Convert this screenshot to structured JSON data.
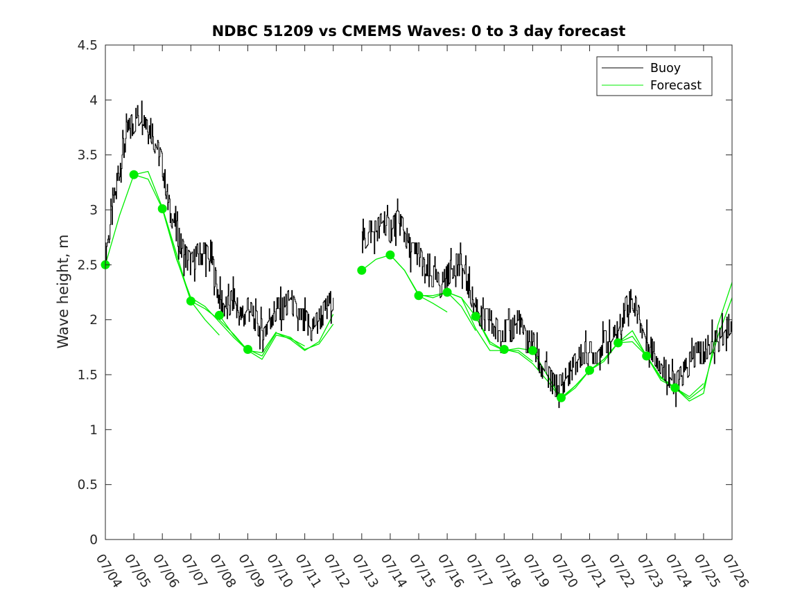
{
  "chart_data": {
    "type": "line",
    "title": "NDBC 51209 vs CMEMS Waves: 0 to 3 day forecast",
    "xlabel": "",
    "ylabel": "Wave height, m",
    "x_axis": {
      "kind": "date",
      "range": [
        "07/04",
        "07/26"
      ],
      "ticks": [
        "07/04",
        "07/05",
        "07/06",
        "07/07",
        "07/08",
        "07/09",
        "07/10",
        "07/11",
        "07/12",
        "07/13",
        "07/14",
        "07/15",
        "07/16",
        "07/17",
        "07/18",
        "07/19",
        "07/20",
        "07/21",
        "07/22",
        "07/23",
        "07/24",
        "07/25",
        "07/26"
      ]
    },
    "ylim": [
      0,
      4.5
    ],
    "yticks": [
      "0",
      "0.5",
      "1",
      "1.5",
      "2",
      "2.5",
      "3",
      "3.5",
      "4",
      "4.5"
    ],
    "grid": false,
    "legend": {
      "position": "top-right",
      "entries": [
        "Buoy",
        "Forecast"
      ]
    },
    "colors": {
      "buoy": "#000000",
      "forecast": "#00ee00"
    },
    "buoy": {
      "name": "Buoy",
      "x": [
        "07/04 00:00",
        "07/04 06:00",
        "07/04 12:00",
        "07/04 18:00",
        "07/05 00:00",
        "07/05 06:00",
        "07/05 12:00",
        "07/05 18:00",
        "07/06 00:00",
        "07/06 06:00",
        "07/06 12:00",
        "07/06 18:00",
        "07/07 00:00",
        "07/07 06:00",
        "07/07 12:00",
        "07/07 18:00",
        "07/08 00:00",
        "07/08 06:00",
        "07/08 12:00",
        "07/08 18:00",
        "07/09 00:00",
        "07/09 06:00",
        "07/09 12:00",
        "07/09 18:00",
        "07/10 00:00",
        "07/10 06:00",
        "07/10 12:00",
        "07/10 18:00",
        "07/11 00:00",
        "07/11 06:00",
        "07/11 12:00",
        "07/11 18:00",
        "07/12 00:00",
        null,
        "07/13 00:00",
        "07/13 06:00",
        "07/13 12:00",
        "07/13 18:00",
        "07/14 00:00",
        "07/14 06:00",
        "07/14 12:00",
        "07/14 18:00",
        "07/15 00:00",
        "07/15 06:00",
        "07/15 12:00",
        "07/15 18:00",
        "07/16 00:00",
        "07/16 06:00",
        "07/16 12:00",
        "07/16 18:00",
        "07/17 00:00",
        "07/17 06:00",
        "07/17 12:00",
        "07/17 18:00",
        "07/18 00:00",
        "07/18 06:00",
        "07/18 12:00",
        "07/18 18:00",
        "07/19 00:00",
        "07/19 06:00",
        "07/19 12:00",
        "07/19 18:00",
        "07/20 00:00",
        "07/20 06:00",
        "07/20 12:00",
        "07/20 18:00",
        "07/21 00:00",
        "07/21 06:00",
        "07/21 12:00",
        "07/21 18:00",
        "07/22 00:00",
        "07/22 06:00",
        "07/22 12:00",
        "07/22 18:00",
        "07/23 00:00",
        "07/23 06:00",
        "07/23 12:00",
        "07/23 18:00",
        "07/24 00:00",
        "07/24 06:00",
        "07/24 12:00",
        "07/24 18:00",
        "07/25 00:00",
        "07/25 06:00",
        "07/25 12:00",
        "07/25 18:00",
        "07/26 00:00"
      ],
      "y": [
        2.6,
        3.0,
        3.4,
        3.7,
        3.8,
        3.9,
        3.8,
        3.6,
        3.4,
        3.0,
        2.8,
        2.6,
        2.5,
        2.6,
        2.6,
        2.5,
        2.2,
        2.1,
        2.2,
        2.0,
        2.1,
        2.0,
        1.9,
        2.0,
        2.1,
        2.1,
        2.2,
        2.0,
        2.0,
        1.9,
        2.0,
        2.1,
        2.2,
        null,
        2.7,
        2.8,
        2.8,
        2.9,
        2.8,
        2.9,
        2.8,
        2.6,
        2.6,
        2.4,
        2.4,
        2.3,
        2.4,
        2.5,
        2.5,
        2.3,
        2.1,
        2.0,
        2.0,
        1.9,
        1.9,
        1.9,
        2.0,
        1.8,
        1.8,
        1.6,
        1.5,
        1.4,
        1.4,
        1.5,
        1.6,
        1.7,
        1.7,
        1.7,
        1.8,
        1.8,
        1.9,
        2.1,
        2.2,
        2.0,
        1.8,
        1.7,
        1.6,
        1.5,
        1.4,
        1.5,
        1.6,
        1.7,
        1.7,
        1.8,
        1.8,
        1.9,
        2.0
      ]
    },
    "forecast": {
      "name": "Forecast",
      "runs": [
        {
          "x": [
            "07/04 00:00",
            "07/04 12:00",
            "07/05 00:00",
            "07/05 12:00",
            "07/06 00:00",
            "07/06 12:00",
            "07/07 00:00"
          ],
          "y": [
            2.5,
            2.95,
            3.32,
            3.28,
            3.01,
            2.56,
            2.17
          ]
        },
        {
          "x": [
            "07/05 00:00",
            "07/05 12:00",
            "07/06 00:00",
            "07/06 12:00",
            "07/07 00:00",
            "07/07 12:00",
            "07/08 00:00"
          ],
          "y": [
            3.32,
            3.35,
            3.02,
            2.6,
            2.17,
            2.0,
            1.86
          ]
        },
        {
          "x": [
            "07/06 00:00",
            "07/06 12:00",
            "07/07 00:00",
            "07/07 12:00",
            "07/08 00:00",
            "07/08 12:00",
            "07/09 00:00"
          ],
          "y": [
            3.01,
            2.55,
            2.2,
            2.12,
            1.98,
            1.84,
            1.72
          ]
        },
        {
          "x": [
            "07/07 00:00",
            "07/07 12:00",
            "07/08 00:00",
            "07/08 12:00",
            "07/09 00:00",
            "07/09 12:00",
            "07/10 00:00"
          ],
          "y": [
            2.17,
            2.1,
            2.0,
            1.87,
            1.72,
            1.7,
            1.89
          ]
        },
        {
          "x": [
            "07/08 00:00",
            "07/08 12:00",
            "07/09 00:00",
            "07/09 12:00",
            "07/10 00:00",
            "07/10 12:00",
            "07/11 00:00"
          ],
          "y": [
            2.04,
            1.86,
            1.72,
            1.64,
            1.86,
            1.83,
            1.76
          ]
        },
        {
          "x": [
            "07/09 00:00",
            "07/09 12:00",
            "07/10 00:00",
            "07/10 12:00",
            "07/11 00:00",
            "07/11 12:00",
            "07/12 00:00"
          ],
          "y": [
            1.73,
            1.67,
            1.88,
            1.84,
            1.73,
            1.78,
            1.96
          ]
        },
        {
          "x": [
            "07/10 00:00",
            "07/10 12:00",
            "07/11 00:00",
            "07/11 12:00",
            "07/12 00:00"
          ],
          "y": [
            1.88,
            1.82,
            1.72,
            1.8,
            2.05
          ]
        },
        {
          "x": [
            "07/13 00:00",
            "07/13 12:00",
            "07/14 00:00",
            "07/14 12:00",
            "07/15 00:00",
            "07/15 12:00",
            "07/16 00:00"
          ],
          "y": [
            2.45,
            2.55,
            2.59,
            2.45,
            2.22,
            2.15,
            2.07
          ]
        },
        {
          "x": [
            "07/14 00:00",
            "07/14 12:00",
            "07/15 00:00",
            "07/15 12:00",
            "07/16 00:00",
            "07/16 12:00",
            "07/17 00:00"
          ],
          "y": [
            2.59,
            2.45,
            2.23,
            2.2,
            2.25,
            2.12,
            1.9
          ]
        },
        {
          "x": [
            "07/15 00:00",
            "07/15 12:00",
            "07/16 00:00",
            "07/16 12:00",
            "07/17 00:00",
            "07/17 12:00",
            "07/18 00:00"
          ],
          "y": [
            2.22,
            2.22,
            2.25,
            2.2,
            1.92,
            1.72,
            1.72
          ]
        },
        {
          "x": [
            "07/16 00:00",
            "07/16 12:00",
            "07/17 00:00",
            "07/17 12:00",
            "07/18 00:00",
            "07/18 12:00",
            "07/19 00:00"
          ],
          "y": [
            2.25,
            2.2,
            2.03,
            1.78,
            1.72,
            1.72,
            1.62
          ]
        },
        {
          "x": [
            "07/17 00:00",
            "07/17 12:00",
            "07/18 00:00",
            "07/18 12:00",
            "07/19 00:00",
            "07/19 12:00",
            "07/20 00:00"
          ],
          "y": [
            2.03,
            1.8,
            1.72,
            1.74,
            1.72,
            1.5,
            1.29
          ]
        },
        {
          "x": [
            "07/18 00:00",
            "07/18 12:00",
            "07/19 00:00",
            "07/19 12:00",
            "07/20 00:00",
            "07/20 12:00",
            "07/21 00:00"
          ],
          "y": [
            1.73,
            1.7,
            1.6,
            1.45,
            1.28,
            1.4,
            1.54
          ]
        },
        {
          "x": [
            "07/19 00:00",
            "07/19 12:00",
            "07/20 00:00",
            "07/20 12:00",
            "07/21 00:00",
            "07/21 12:00",
            "07/22 00:00"
          ],
          "y": [
            1.72,
            1.5,
            1.28,
            1.38,
            1.54,
            1.64,
            1.79
          ]
        },
        {
          "x": [
            "07/20 00:00",
            "07/20 12:00",
            "07/21 00:00",
            "07/21 12:00",
            "07/22 00:00",
            "07/22 12:00",
            "07/23 00:00"
          ],
          "y": [
            1.29,
            1.4,
            1.54,
            1.64,
            1.79,
            1.9,
            1.67
          ]
        },
        {
          "x": [
            "07/21 00:00",
            "07/21 12:00",
            "07/22 00:00",
            "07/22 12:00",
            "07/23 00:00",
            "07/23 12:00",
            "07/24 00:00"
          ],
          "y": [
            1.54,
            1.62,
            1.79,
            1.85,
            1.67,
            1.48,
            1.38
          ]
        },
        {
          "x": [
            "07/22 00:00",
            "07/22 12:00",
            "07/23 00:00",
            "07/23 12:00",
            "07/24 00:00",
            "07/24 12:00",
            "07/25 00:00"
          ],
          "y": [
            1.79,
            1.8,
            1.67,
            1.45,
            1.38,
            1.3,
            1.42
          ]
        },
        {
          "x": [
            "07/23 00:00",
            "07/23 12:00",
            "07/24 00:00",
            "07/24 12:00",
            "07/25 00:00",
            "07/25 12:00",
            "07/26 00:00"
          ],
          "y": [
            1.67,
            1.47,
            1.38,
            1.28,
            1.38,
            1.85,
            2.2
          ]
        },
        {
          "x": [
            "07/24 00:00",
            "07/24 12:00",
            "07/25 00:00",
            "07/25 12:00",
            "07/26 00:00"
          ],
          "y": [
            1.38,
            1.26,
            1.33,
            1.95,
            2.34
          ]
        }
      ],
      "initial_points": {
        "x": [
          "07/04",
          "07/05",
          "07/06",
          "07/07",
          "07/08",
          "07/09",
          "07/13",
          "07/14",
          "07/15",
          "07/16",
          "07/17",
          "07/18",
          "07/19",
          "07/20",
          "07/21",
          "07/22",
          "07/23",
          "07/24"
        ],
        "y": [
          2.5,
          3.32,
          3.01,
          2.17,
          2.04,
          1.73,
          2.45,
          2.59,
          2.22,
          2.25,
          2.03,
          1.73,
          1.72,
          1.29,
          1.54,
          1.79,
          1.67,
          1.38
        ]
      }
    }
  }
}
